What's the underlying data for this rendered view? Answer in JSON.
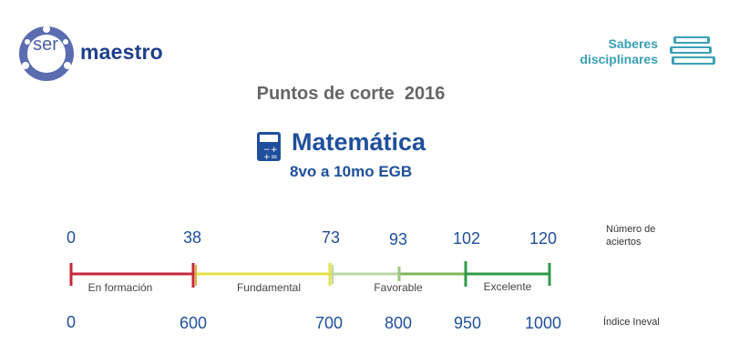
{
  "logo": {
    "prefix": "ser",
    "word": "maestro"
  },
  "header": {
    "saberes_line1": "Saberes",
    "saberes_line2": "disciplinares"
  },
  "title": "Puntos de corte  2016",
  "subject": "Matemática",
  "grade": "8vo a 10mo EGB",
  "scale": {
    "aciertos_label_line1": "Número de",
    "aciertos_label_line2": "aciertos",
    "ineval_label": "Índice Ineval",
    "aciertos": [
      "0",
      "38",
      "73",
      "93",
      "102",
      "120"
    ],
    "ineval": [
      "0",
      "600",
      "700",
      "800",
      "950",
      "1000"
    ],
    "segments": [
      {
        "label": "En formación",
        "color": "#c6283c"
      },
      {
        "label": "Fundamental",
        "color": "#e3e14a"
      },
      {
        "label": "Favorable",
        "color": "#b9d7a6"
      },
      {
        "label": "Excelente",
        "color": "#2f9a4a"
      }
    ],
    "extra_tick_color": "#7fb75a"
  },
  "colors": {
    "brand_blue": "#1f4f9c",
    "teal": "#3aa0b5",
    "title_gray": "#666666"
  }
}
